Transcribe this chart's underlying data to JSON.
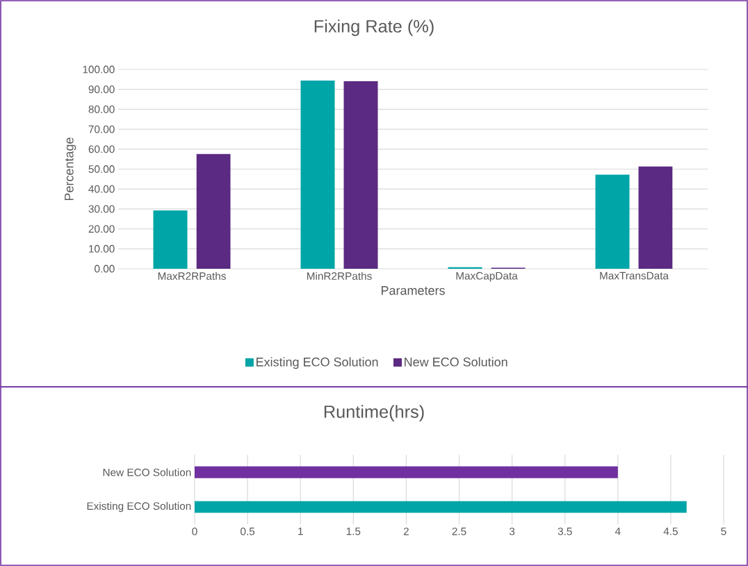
{
  "chart_data": [
    {
      "type": "bar",
      "title": "Fixing Rate (%)",
      "xlabel": "Parameters",
      "ylabel": "Percentage",
      "categories": [
        "MaxR2RPaths",
        "MinR2RPaths",
        "MaxCapData",
        "MaxTransData"
      ],
      "series": [
        {
          "name": "Existing ECO Solution",
          "color": "#00a5a8",
          "values": [
            29.3,
            94.4,
            0.8,
            47.2
          ]
        },
        {
          "name": "New ECO Solution",
          "color": "#5b2a82",
          "values": [
            57.6,
            94.2,
            0.5,
            51.3
          ]
        }
      ],
      "ylim": [
        0,
        100
      ],
      "yticks": [
        {
          "value": 0,
          "label": "0.00"
        },
        {
          "value": 10,
          "label": "10.00"
        },
        {
          "value": 20,
          "label": "20.00"
        },
        {
          "value": 30,
          "label": "30.00"
        },
        {
          "value": 40,
          "label": "40.00"
        },
        {
          "value": 50,
          "label": "50.00"
        },
        {
          "value": 60,
          "label": "60.00"
        },
        {
          "value": 70,
          "label": "70.00"
        },
        {
          "value": 80,
          "label": "80.00"
        },
        {
          "value": 90,
          "label": "90.00"
        },
        {
          "value": 100,
          "label": "100.00"
        }
      ],
      "grid": "y",
      "legend": "bottom"
    },
    {
      "type": "bar",
      "title": "Runtime(hrs)",
      "orientation": "horizontal",
      "categories": [
        "New ECO Solution",
        "Existing ECO Solution"
      ],
      "values": [
        4.0,
        4.65
      ],
      "colors": [
        "#7030a0",
        "#00a5a8"
      ],
      "xlim": [
        0,
        5
      ],
      "xticks": [
        0,
        0.5,
        1,
        1.5,
        2,
        2.5,
        3,
        3.5,
        4,
        4.5,
        5
      ],
      "grid": "x"
    }
  ]
}
